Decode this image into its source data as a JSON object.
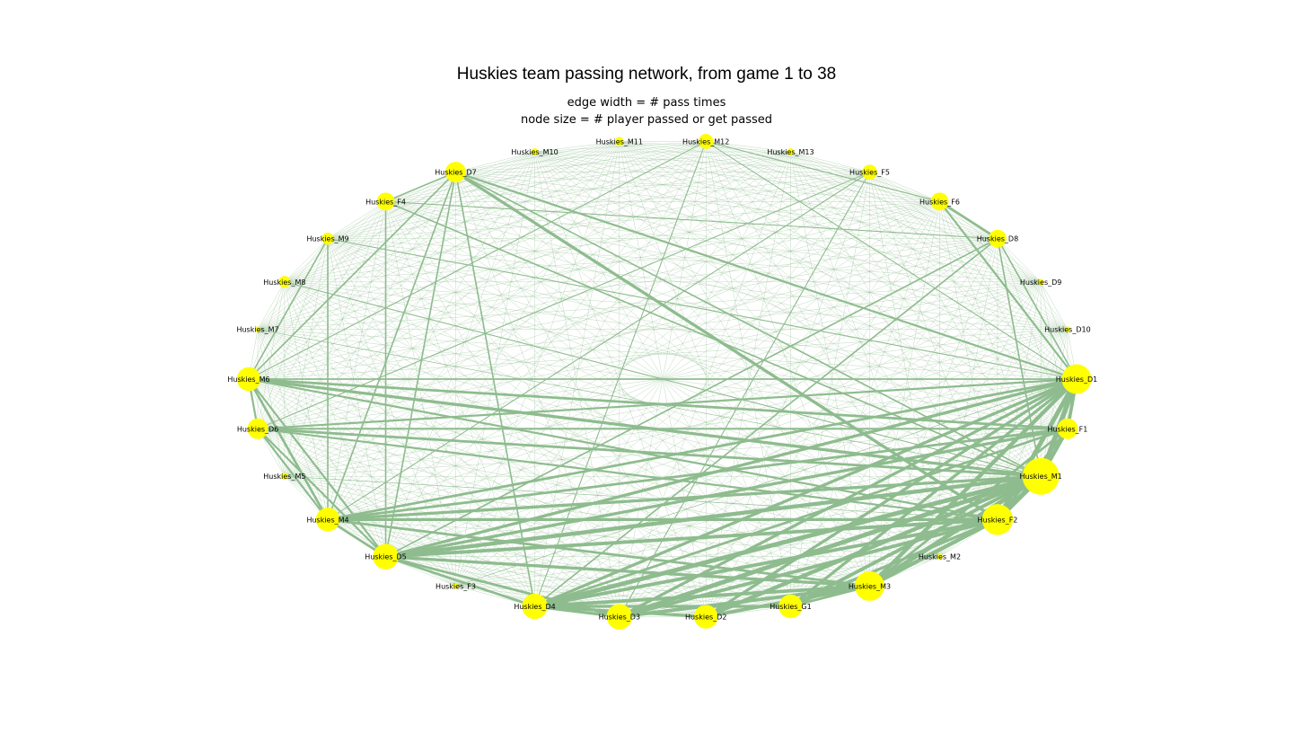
{
  "title": "Huskies team passing network, from game 1 to 38",
  "subtitle_lines": [
    "edge width = # pass times",
    "node size = # player passed or get passed"
  ],
  "colors": {
    "edge": "#8fbc8f",
    "node": "#ffff00",
    "label": "#000000",
    "background": "#ffffff"
  },
  "nodes": [
    {
      "id": "Huskies_D1",
      "size": 5
    },
    {
      "id": "Huskies_D10",
      "size": 1
    },
    {
      "id": "Huskies_D9",
      "size": 1
    },
    {
      "id": "Huskies_D8",
      "size": 3
    },
    {
      "id": "Huskies_F6",
      "size": 3
    },
    {
      "id": "Huskies_F5",
      "size": 2.5
    },
    {
      "id": "Huskies_M13",
      "size": 1.2
    },
    {
      "id": "Huskies_M12",
      "size": 2.5
    },
    {
      "id": "Huskies_M11",
      "size": 1.5
    },
    {
      "id": "Huskies_M10",
      "size": 1.2
    },
    {
      "id": "Huskies_D7",
      "size": 3.5
    },
    {
      "id": "Huskies_F4",
      "size": 3
    },
    {
      "id": "Huskies_M9",
      "size": 2
    },
    {
      "id": "Huskies_M8",
      "size": 2
    },
    {
      "id": "Huskies_M7",
      "size": 1
    },
    {
      "id": "Huskies_M6",
      "size": 4
    },
    {
      "id": "Huskies_D6",
      "size": 3.5
    },
    {
      "id": "Huskies_M5",
      "size": 1.2
    },
    {
      "id": "Huskies_M4",
      "size": 4
    },
    {
      "id": "Huskies_D5",
      "size": 4.3
    },
    {
      "id": "Huskies_F3",
      "size": 1
    },
    {
      "id": "Huskies_D4",
      "size": 4.3
    },
    {
      "id": "Huskies_D3",
      "size": 4.3
    },
    {
      "id": "Huskies_D2",
      "size": 4
    },
    {
      "id": "Huskies_G1",
      "size": 4
    },
    {
      "id": "Huskies_M3",
      "size": 5
    },
    {
      "id": "Huskies_M2",
      "size": 1
    },
    {
      "id": "Huskies_F2",
      "size": 5.2
    },
    {
      "id": "Huskies_M1",
      "size": 6.2
    },
    {
      "id": "Huskies_F1",
      "size": 3.5
    }
  ],
  "edges": [
    [
      "Huskies_M1",
      "Huskies_D4",
      9
    ],
    [
      "Huskies_M1",
      "Huskies_D5",
      8
    ],
    [
      "Huskies_M1",
      "Huskies_D3",
      9
    ],
    [
      "Huskies_M1",
      "Huskies_D2",
      8
    ],
    [
      "Huskies_M1",
      "Huskies_M3",
      9
    ],
    [
      "Huskies_M1",
      "Huskies_F2",
      10
    ],
    [
      "Huskies_M1",
      "Huskies_D1",
      10
    ],
    [
      "Huskies_M1",
      "Huskies_F1",
      8
    ],
    [
      "Huskies_M1",
      "Huskies_G1",
      7
    ],
    [
      "Huskies_M1",
      "Huskies_M4",
      6
    ],
    [
      "Huskies_M1",
      "Huskies_D6",
      5
    ],
    [
      "Huskies_M1",
      "Huskies_M6",
      6
    ],
    [
      "Huskies_M1",
      "Huskies_D7",
      3
    ],
    [
      "Huskies_M1",
      "Huskies_D8",
      3
    ],
    [
      "Huskies_D1",
      "Huskies_F2",
      9
    ],
    [
      "Huskies_D1",
      "Huskies_M3",
      8
    ],
    [
      "Huskies_D1",
      "Huskies_D4",
      6
    ],
    [
      "Huskies_D1",
      "Huskies_D5",
      6
    ],
    [
      "Huskies_D1",
      "Huskies_M4",
      5
    ],
    [
      "Huskies_D1",
      "Huskies_D6",
      4
    ],
    [
      "Huskies_D1",
      "Huskies_M6",
      3
    ],
    [
      "Huskies_D1",
      "Huskies_D7",
      4
    ],
    [
      "Huskies_D1",
      "Huskies_G1",
      6
    ],
    [
      "Huskies_D1",
      "Huskies_D3",
      6
    ],
    [
      "Huskies_D1",
      "Huskies_D2",
      6
    ],
    [
      "Huskies_D1",
      "Huskies_F1",
      7
    ],
    [
      "Huskies_D1",
      "Huskies_D8",
      3
    ],
    [
      "Huskies_F2",
      "Huskies_M3",
      8
    ],
    [
      "Huskies_F2",
      "Huskies_D5",
      7
    ],
    [
      "Huskies_F2",
      "Huskies_M4",
      6
    ],
    [
      "Huskies_F2",
      "Huskies_D4",
      7
    ],
    [
      "Huskies_F2",
      "Huskies_D3",
      7
    ],
    [
      "Huskies_F2",
      "Huskies_G1",
      6
    ],
    [
      "Huskies_F2",
      "Huskies_F1",
      6
    ],
    [
      "Huskies_F2",
      "Huskies_M6",
      4
    ],
    [
      "Huskies_F2",
      "Huskies_D6",
      4
    ],
    [
      "Huskies_M3",
      "Huskies_D4",
      7
    ],
    [
      "Huskies_M3",
      "Huskies_D5",
      6
    ],
    [
      "Huskies_M3",
      "Huskies_D3",
      7
    ],
    [
      "Huskies_M3",
      "Huskies_D2",
      7
    ],
    [
      "Huskies_M3",
      "Huskies_M4",
      5
    ],
    [
      "Huskies_M3",
      "Huskies_F1",
      5
    ],
    [
      "Huskies_M3",
      "Huskies_G1",
      5
    ],
    [
      "Huskies_D4",
      "Huskies_D3",
      6
    ],
    [
      "Huskies_D4",
      "Huskies_D2",
      6
    ],
    [
      "Huskies_D4",
      "Huskies_G1",
      6
    ],
    [
      "Huskies_D4",
      "Huskies_D5",
      5
    ],
    [
      "Huskies_D4",
      "Huskies_F1",
      5
    ],
    [
      "Huskies_D5",
      "Huskies_M4",
      5
    ],
    [
      "Huskies_D5",
      "Huskies_D6",
      4
    ],
    [
      "Huskies_D5",
      "Huskies_M6",
      4
    ],
    [
      "Huskies_D5",
      "Huskies_F1",
      6
    ],
    [
      "Huskies_D5",
      "Huskies_D3",
      5
    ],
    [
      "Huskies_M4",
      "Huskies_M6",
      5
    ],
    [
      "Huskies_M4",
      "Huskies_D6",
      4
    ],
    [
      "Huskies_M4",
      "Huskies_F1",
      5
    ],
    [
      "Huskies_M6",
      "Huskies_D6",
      4
    ],
    [
      "Huskies_M6",
      "Huskies_D7",
      3
    ],
    [
      "Huskies_M6",
      "Huskies_F1",
      5
    ],
    [
      "Huskies_M6",
      "Huskies_M9",
      3
    ],
    [
      "Huskies_D6",
      "Huskies_F1",
      4
    ],
    [
      "Huskies_D7",
      "Huskies_F2",
      6
    ],
    [
      "Huskies_D7",
      "Huskies_D4",
      3
    ],
    [
      "Huskies_D7",
      "Huskies_M4",
      3
    ],
    [
      "Huskies_D7",
      "Huskies_D5",
      3
    ],
    [
      "Huskies_D7",
      "Huskies_F4",
      3
    ],
    [
      "Huskies_D8",
      "Huskies_F6",
      5
    ],
    [
      "Huskies_D8",
      "Huskies_D4",
      3
    ],
    [
      "Huskies_D8",
      "Huskies_D5",
      3
    ],
    [
      "Huskies_F6",
      "Huskies_D1",
      4
    ],
    [
      "Huskies_F6",
      "Huskies_M12",
      2
    ],
    [
      "Huskies_F5",
      "Huskies_M4",
      2
    ],
    [
      "Huskies_F5",
      "Huskies_D3",
      2
    ],
    [
      "Huskies_F5",
      "Huskies_D6",
      2
    ],
    [
      "Huskies_M12",
      "Huskies_M6",
      2
    ],
    [
      "Huskies_M12",
      "Huskies_D1",
      2
    ],
    [
      "Huskies_M12",
      "Huskies_D4",
      2
    ],
    [
      "Huskies_F4",
      "Huskies_M1",
      3
    ],
    [
      "Huskies_F4",
      "Huskies_D5",
      3
    ],
    [
      "Huskies_F4",
      "Huskies_D8",
      2
    ],
    [
      "Huskies_M8",
      "Huskies_M1",
      2
    ],
    [
      "Huskies_M9",
      "Huskies_D1",
      2
    ],
    [
      "Huskies_M9",
      "Huskies_M4",
      3
    ],
    [
      "Huskies_M5",
      "Huskies_F2",
      1
    ],
    [
      "Huskies_M7",
      "Huskies_M1",
      1
    ],
    [
      "Huskies_F3",
      "Huskies_D1",
      1
    ]
  ]
}
